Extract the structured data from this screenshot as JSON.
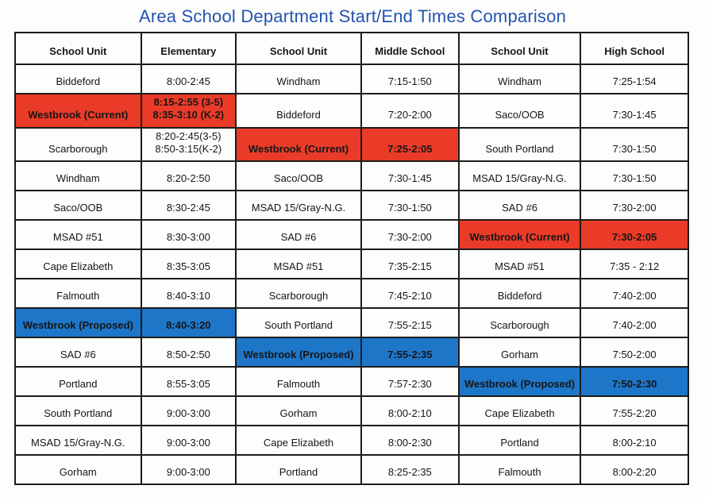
{
  "title": "Area School Department Start/End Times Comparison",
  "colors": {
    "title_color": "#2453b0",
    "border_color": "#1c1c1c",
    "cell_text": "#161616",
    "highlight_red_bg": "#ea3b28",
    "highlight_red_text": "#8b1a0e",
    "highlight_blue_bg": "#1e76c8",
    "highlight_blue_text": "#1e3a52"
  },
  "table": {
    "headers": [
      "School Unit",
      "Elementary",
      "School Unit",
      "Middle School",
      "School Unit",
      "High School"
    ],
    "rows": [
      [
        {
          "t": "Biddeford"
        },
        {
          "t": "8:00-2:45"
        },
        {
          "t": "Windham"
        },
        {
          "t": "7:15-1:50"
        },
        {
          "t": "Windham"
        },
        {
          "t": "7:25-1:54"
        }
      ],
      [
        {
          "t": "Westbrook (Current)",
          "hl": "red"
        },
        {
          "t": "8:15-2:55 (3-5)\n8:35-3:10 (K-2)",
          "hl": "red"
        },
        {
          "t": "Biddeford"
        },
        {
          "t": "7:20-2:00"
        },
        {
          "t": "Saco/OOB"
        },
        {
          "t": "7:30-1:45"
        }
      ],
      [
        {
          "t": "Scarborough"
        },
        {
          "t": "8:20-2:45(3-5)\n8:50-3:15(K-2)"
        },
        {
          "t": "Westbrook (Current)",
          "hl": "red"
        },
        {
          "t": "7:25-2:05",
          "hl": "red"
        },
        {
          "t": "South Portland"
        },
        {
          "t": "7:30-1:50"
        }
      ],
      [
        {
          "t": "Windham"
        },
        {
          "t": "8:20-2:50"
        },
        {
          "t": "Saco/OOB"
        },
        {
          "t": "7:30-1:45"
        },
        {
          "t": "MSAD 15/Gray-N.G."
        },
        {
          "t": "7:30-1:50"
        }
      ],
      [
        {
          "t": "Saco/OOB"
        },
        {
          "t": "8:30-2:45"
        },
        {
          "t": "MSAD 15/Gray-N.G."
        },
        {
          "t": "7:30-1:50"
        },
        {
          "t": "SAD #6"
        },
        {
          "t": "7:30-2:00"
        }
      ],
      [
        {
          "t": "MSAD #51"
        },
        {
          "t": "8:30-3:00"
        },
        {
          "t": "SAD #6"
        },
        {
          "t": "7:30-2:00"
        },
        {
          "t": "Westbrook (Current)",
          "hl": "red"
        },
        {
          "t": "7:30-2:05",
          "hl": "red"
        }
      ],
      [
        {
          "t": "Cape Elizabeth"
        },
        {
          "t": "8:35-3:05"
        },
        {
          "t": "MSAD #51"
        },
        {
          "t": "7:35-2:15"
        },
        {
          "t": "MSAD #51"
        },
        {
          "t": "7:35 - 2:12"
        }
      ],
      [
        {
          "t": "Falmouth"
        },
        {
          "t": "8:40-3:10"
        },
        {
          "t": "Scarborough"
        },
        {
          "t": "7:45-2:10"
        },
        {
          "t": "Biddeford"
        },
        {
          "t": "7:40-2:00"
        }
      ],
      [
        {
          "t": "Westbrook (Proposed)",
          "hl": "blue"
        },
        {
          "t": "8:40-3:20",
          "hl": "blue"
        },
        {
          "t": "South Portland"
        },
        {
          "t": "7:55-2:15"
        },
        {
          "t": "Scarborough"
        },
        {
          "t": "7:40-2:00"
        }
      ],
      [
        {
          "t": "SAD #6"
        },
        {
          "t": "8:50-2:50"
        },
        {
          "t": "Westbrook (Proposed)",
          "hl": "blue"
        },
        {
          "t": "7:55-2:35",
          "hl": "blue"
        },
        {
          "t": "Gorham"
        },
        {
          "t": "7:50-2:00"
        }
      ],
      [
        {
          "t": "Portland"
        },
        {
          "t": "8:55-3:05"
        },
        {
          "t": "Falmouth"
        },
        {
          "t": "7:57-2:30"
        },
        {
          "t": "Westbrook (Proposed)",
          "hl": "blue"
        },
        {
          "t": "7:50-2:30",
          "hl": "blue"
        }
      ],
      [
        {
          "t": "South Portland"
        },
        {
          "t": "9:00-3:00"
        },
        {
          "t": "Gorham"
        },
        {
          "t": "8:00-2:10"
        },
        {
          "t": "Cape Elizabeth"
        },
        {
          "t": "7:55-2:20"
        }
      ],
      [
        {
          "t": "MSAD 15/Gray-N.G."
        },
        {
          "t": "9:00-3:00"
        },
        {
          "t": "Cape Elizabeth"
        },
        {
          "t": "8:00-2:30"
        },
        {
          "t": "Portland"
        },
        {
          "t": "8:00-2:10"
        }
      ],
      [
        {
          "t": "Gorham"
        },
        {
          "t": "9:00-3:00"
        },
        {
          "t": "Portland"
        },
        {
          "t": "8:25-2:35"
        },
        {
          "t": "Falmouth"
        },
        {
          "t": "8:00-2:20"
        }
      ]
    ]
  }
}
